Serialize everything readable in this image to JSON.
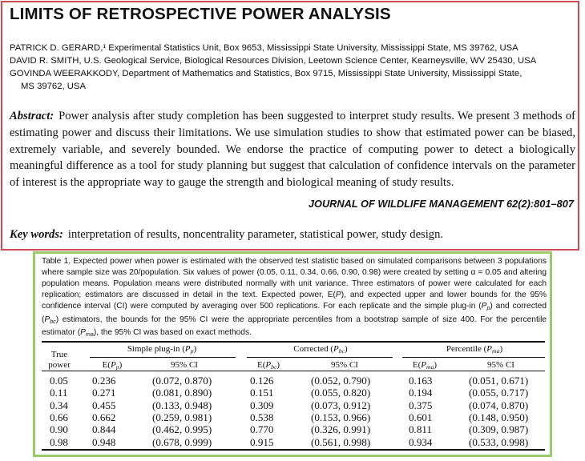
{
  "title": "LIMITS OF RETROSPECTIVE POWER ANALYSIS",
  "authors": [
    "PATRICK D. GERARD,¹ Experimental Statistics Unit, Box 9653, Mississippi State University, Mississippi State, MS 39762, USA",
    "DAVID R. SMITH, U.S. Geological Service, Biological Resources Division, Leetown Science Center, Kearneysville, WV 25430, USA",
    "GOVINDA WEERAKKODY, Department of Mathematics and Statistics, Box 9715, Mississippi State University, Mississippi State,",
    "MS 39762, USA"
  ],
  "abstract": {
    "label": "Abstract:",
    "text": "Power analysis after study completion has been suggested to interpret study results. We present 3 methods of estimating power and discuss their limitations. We use simulation studies to show that estimated power can be biased, extremely variable, and severely bounded. We endorse the practice of computing power to detect a biologically meaningful difference as a tool for study planning but suggest that calculation of confidence intervals on the parameter of interest is the appropriate way to gauge the strength and biological meaning of study results."
  },
  "journal": "JOURNAL OF WILDLIFE MANAGEMENT 62(2):801–807",
  "keywords": {
    "label": "Key words:",
    "text": "interpretation of results, noncentrality parameter, statistical power, study design."
  },
  "table": {
    "caption": "Table 1.  Expected power when power is estimated with the observed test statistic based on simulated comparisons between 3 populations where sample size was 20/population. Six values of power (0.05, 0.11, 0.34, 0.66, 0.90, 0.98) were created by setting α = 0.05 and altering population means. Population means were distributed normally with unit variance. Three estimators of power were calculated for each replication; estimators are discussed in detail in the text. Expected power, E(P), and expected upper and lower bounds for the 95% confidence interval (CI) were computed by averaging over 500 replications. For each replicate and the simple plug-in (Pp) and corrected (Pbc) estimators, the bounds for the 95% CI were the appropriate percentiles from a bootstrap sample of size 400. For the percentile estimator (Pma), the 95% CI was based on exact methods.",
    "true_power_header": [
      "True",
      "power"
    ],
    "groups": [
      "Simple plug-in (Pp)",
      "Corrected (Pbc)",
      "Percentile (Pma)"
    ],
    "subheaders": [
      "E(Pp)",
      "95% CI",
      "E(Pbc)",
      "95% CI",
      "E(Pma)",
      "95% CI"
    ],
    "rows": [
      [
        "0.05",
        "0.236",
        "(0.072, 0.870)",
        "0.126",
        "(0.052, 0.790)",
        "0.163",
        "(0.051, 0.671)"
      ],
      [
        "0.11",
        "0.271",
        "(0.081, 0.890)",
        "0.151",
        "(0.055, 0.820)",
        "0.194",
        "(0.055, 0.717)"
      ],
      [
        "0.34",
        "0.455",
        "(0.133, 0.948)",
        "0.309",
        "(0.073, 0.912)",
        "0.375",
        "(0.074, 0.870)"
      ],
      [
        "0.66",
        "0.662",
        "(0.259, 0.981)",
        "0.538",
        "(0.153, 0.966)",
        "0.601",
        "(0.148, 0.950)"
      ],
      [
        "0.90",
        "0.844",
        "(0.462, 0.995)",
        "0.770",
        "(0.326, 0.991)",
        "0.811",
        "(0.309, 0.987)"
      ],
      [
        "0.98",
        "0.948",
        "(0.678, 0.999)",
        "0.915",
        "(0.561, 0.998)",
        "0.934",
        "(0.533, 0.998)"
      ]
    ]
  },
  "colors": {
    "top_border": "#d04a55",
    "bottom_border": "#9acb6b"
  }
}
